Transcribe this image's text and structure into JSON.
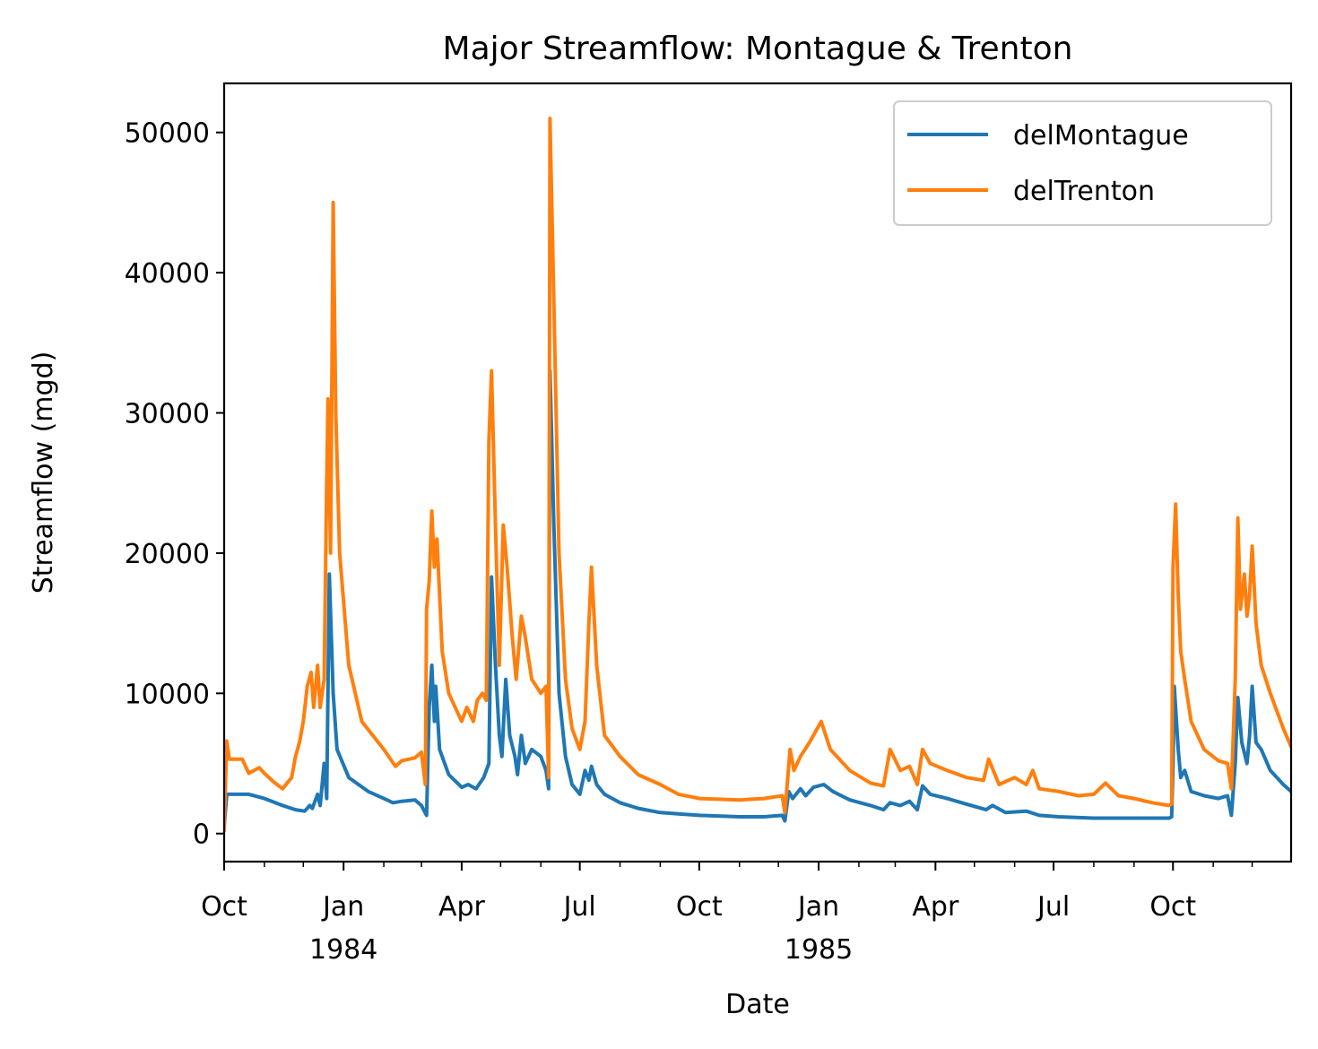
{
  "chart_data": {
    "type": "line",
    "title": "Major Streamflow: Montague & Trenton",
    "xlabel": "Date",
    "ylabel": "Streamflow (mgd)",
    "xlim": [
      "1983-10-01",
      "1985-12-31"
    ],
    "ylim": [
      -2000,
      53500
    ],
    "grid": false,
    "legend_position": "top-right",
    "y_ticks": [
      0,
      10000,
      20000,
      30000,
      40000,
      50000
    ],
    "y_tick_labels": [
      "0",
      "10000",
      "20000",
      "30000",
      "40000",
      "50000"
    ],
    "x_major_ticks": [
      {
        "date": "1983-10-01",
        "label": "Oct",
        "year": ""
      },
      {
        "date": "1984-01-01",
        "label": "Jan",
        "year": "1984"
      },
      {
        "date": "1984-04-01",
        "label": "Apr",
        "year": ""
      },
      {
        "date": "1984-07-01",
        "label": "Jul",
        "year": ""
      },
      {
        "date": "1984-10-01",
        "label": "Oct",
        "year": ""
      },
      {
        "date": "1985-01-01",
        "label": "Jan",
        "year": "1985"
      },
      {
        "date": "1985-04-01",
        "label": "Apr",
        "year": ""
      },
      {
        "date": "1985-07-01",
        "label": "Jul",
        "year": ""
      },
      {
        "date": "1985-10-01",
        "label": "Oct",
        "year": ""
      }
    ],
    "x_minor_ticks": [
      "1983-11-01",
      "1983-12-01",
      "1984-02-01",
      "1984-03-01",
      "1984-05-01",
      "1984-06-01",
      "1984-08-01",
      "1984-09-01",
      "1984-11-01",
      "1984-12-01",
      "1985-02-01",
      "1985-03-01",
      "1985-05-01",
      "1985-06-01",
      "1985-08-01",
      "1985-09-01",
      "1985-11-01",
      "1985-12-01"
    ],
    "series": [
      {
        "name": "delMontague",
        "color": "#1f77b4",
        "points": [
          [
            "1983-10-01",
            500
          ],
          [
            "1983-10-03",
            2800
          ],
          [
            "1983-10-20",
            2800
          ],
          [
            "1983-11-01",
            2500
          ],
          [
            "1983-11-15",
            2000
          ],
          [
            "1983-11-25",
            1700
          ],
          [
            "1983-12-02",
            1600
          ],
          [
            "1983-12-06",
            2000
          ],
          [
            "1983-12-08",
            1800
          ],
          [
            "1983-12-12",
            2800
          ],
          [
            "1983-12-14",
            2000
          ],
          [
            "1983-12-17",
            5000
          ],
          [
            "1983-12-19",
            2500
          ],
          [
            "1983-12-21",
            18500
          ],
          [
            "1983-12-24",
            10000
          ],
          [
            "1983-12-27",
            6000
          ],
          [
            "1984-01-05",
            4000
          ],
          [
            "1984-01-20",
            3000
          ],
          [
            "1984-02-01",
            2500
          ],
          [
            "1984-02-08",
            2200
          ],
          [
            "1984-02-15",
            2300
          ],
          [
            "1984-02-25",
            2400
          ],
          [
            "1984-03-01",
            2000
          ],
          [
            "1984-03-05",
            1300
          ],
          [
            "1984-03-07",
            9000
          ],
          [
            "1984-03-09",
            12000
          ],
          [
            "1984-03-11",
            8000
          ],
          [
            "1984-03-12",
            10500
          ],
          [
            "1984-03-15",
            6000
          ],
          [
            "1984-03-22",
            4200
          ],
          [
            "1984-04-01",
            3300
          ],
          [
            "1984-04-06",
            3500
          ],
          [
            "1984-04-12",
            3200
          ],
          [
            "1984-04-18",
            4000
          ],
          [
            "1984-04-22",
            5000
          ],
          [
            "1984-04-24",
            18300
          ],
          [
            "1984-04-27",
            12000
          ],
          [
            "1984-04-30",
            7000
          ],
          [
            "1984-05-02",
            5500
          ],
          [
            "1984-05-05",
            11000
          ],
          [
            "1984-05-08",
            7000
          ],
          [
            "1984-05-12",
            5500
          ],
          [
            "1984-05-14",
            4200
          ],
          [
            "1984-05-17",
            7000
          ],
          [
            "1984-05-20",
            5000
          ],
          [
            "1984-05-25",
            6000
          ],
          [
            "1984-06-01",
            5500
          ],
          [
            "1984-06-05",
            4500
          ],
          [
            "1984-06-07",
            3200
          ],
          [
            "1984-06-08",
            33000
          ],
          [
            "1984-06-11",
            22000
          ],
          [
            "1984-06-15",
            10000
          ],
          [
            "1984-06-20",
            5500
          ],
          [
            "1984-06-25",
            3500
          ],
          [
            "1984-07-01",
            2800
          ],
          [
            "1984-07-05",
            4500
          ],
          [
            "1984-07-08",
            3800
          ],
          [
            "1984-07-10",
            4800
          ],
          [
            "1984-07-14",
            3500
          ],
          [
            "1984-07-20",
            2800
          ],
          [
            "1984-08-01",
            2200
          ],
          [
            "1984-08-15",
            1800
          ],
          [
            "1984-09-01",
            1500
          ],
          [
            "1984-09-15",
            1400
          ],
          [
            "1984-10-01",
            1300
          ],
          [
            "1984-11-01",
            1200
          ],
          [
            "1984-11-20",
            1200
          ],
          [
            "1984-12-04",
            1300
          ],
          [
            "1984-12-06",
            900
          ],
          [
            "1984-12-09",
            3000
          ],
          [
            "1984-12-12",
            2500
          ],
          [
            "1984-12-18",
            3200
          ],
          [
            "1984-12-22",
            2700
          ],
          [
            "1984-12-28",
            3300
          ],
          [
            "1985-01-05",
            3500
          ],
          [
            "1985-01-12",
            3000
          ],
          [
            "1985-01-25",
            2400
          ],
          [
            "1985-02-10",
            2000
          ],
          [
            "1985-02-20",
            1700
          ],
          [
            "1985-02-25",
            2200
          ],
          [
            "1985-03-05",
            2000
          ],
          [
            "1985-03-12",
            2300
          ],
          [
            "1985-03-18",
            1700
          ],
          [
            "1985-03-22",
            3400
          ],
          [
            "1985-03-28",
            2800
          ],
          [
            "1985-04-10",
            2500
          ],
          [
            "1985-04-25",
            2100
          ],
          [
            "1985-05-10",
            1700
          ],
          [
            "1985-05-15",
            2000
          ],
          [
            "1985-05-25",
            1500
          ],
          [
            "1985-06-10",
            1600
          ],
          [
            "1985-06-20",
            1300
          ],
          [
            "1985-07-05",
            1200
          ],
          [
            "1985-08-01",
            1100
          ],
          [
            "1985-09-01",
            1100
          ],
          [
            "1985-09-28",
            1100
          ],
          [
            "1985-09-30",
            1200
          ],
          [
            "1985-10-01",
            5000
          ],
          [
            "1985-10-02",
            10500
          ],
          [
            "1985-10-05",
            6000
          ],
          [
            "1985-10-07",
            4000
          ],
          [
            "1985-10-10",
            4500
          ],
          [
            "1985-10-15",
            3000
          ],
          [
            "1985-10-25",
            2700
          ],
          [
            "1985-11-05",
            2500
          ],
          [
            "1985-11-12",
            2700
          ],
          [
            "1985-11-15",
            1300
          ],
          [
            "1985-11-18",
            5000
          ],
          [
            "1985-11-20",
            9700
          ],
          [
            "1985-11-23",
            6500
          ],
          [
            "1985-11-27",
            5000
          ],
          [
            "1985-11-29",
            7000
          ],
          [
            "1985-12-01",
            10500
          ],
          [
            "1985-12-04",
            6500
          ],
          [
            "1985-12-08",
            6000
          ],
          [
            "1985-12-15",
            4500
          ],
          [
            "1985-12-25",
            3500
          ],
          [
            "1985-12-31",
            3000
          ]
        ]
      },
      {
        "name": "delTrenton",
        "color": "#ff7f0e",
        "points": [
          [
            "1983-10-01",
            200
          ],
          [
            "1983-10-03",
            6600
          ],
          [
            "1983-10-05",
            5300
          ],
          [
            "1983-10-15",
            5300
          ],
          [
            "1983-10-20",
            4300
          ],
          [
            "1983-10-28",
            4700
          ],
          [
            "1983-11-01",
            4300
          ],
          [
            "1983-11-08",
            3700
          ],
          [
            "1983-11-15",
            3200
          ],
          [
            "1983-11-22",
            4000
          ],
          [
            "1983-11-25",
            5500
          ],
          [
            "1983-11-28",
            6500
          ],
          [
            "1983-12-01",
            8000
          ],
          [
            "1983-12-04",
            10500
          ],
          [
            "1983-12-07",
            11500
          ],
          [
            "1983-12-09",
            9000
          ],
          [
            "1983-12-12",
            12000
          ],
          [
            "1983-12-14",
            9000
          ],
          [
            "1983-12-17",
            11000
          ],
          [
            "1983-12-19",
            25000
          ],
          [
            "1983-12-20",
            31000
          ],
          [
            "1983-12-22",
            20000
          ],
          [
            "1983-12-24",
            45000
          ],
          [
            "1983-12-26",
            30000
          ],
          [
            "1983-12-29",
            20000
          ],
          [
            "1984-01-05",
            12000
          ],
          [
            "1984-01-15",
            8000
          ],
          [
            "1984-02-01",
            6000
          ],
          [
            "1984-02-10",
            4800
          ],
          [
            "1984-02-15",
            5200
          ],
          [
            "1984-02-25",
            5400
          ],
          [
            "1984-03-01",
            5800
          ],
          [
            "1984-03-04",
            3500
          ],
          [
            "1984-03-05",
            16000
          ],
          [
            "1984-03-07",
            18000
          ],
          [
            "1984-03-09",
            23000
          ],
          [
            "1984-03-11",
            19000
          ],
          [
            "1984-03-13",
            21000
          ],
          [
            "1984-03-15",
            17000
          ],
          [
            "1984-03-17",
            13000
          ],
          [
            "1984-03-22",
            10000
          ],
          [
            "1984-04-01",
            8000
          ],
          [
            "1984-04-05",
            9000
          ],
          [
            "1984-04-10",
            8000
          ],
          [
            "1984-04-13",
            9500
          ],
          [
            "1984-04-17",
            10000
          ],
          [
            "1984-04-20",
            9500
          ],
          [
            "1984-04-22",
            28000
          ],
          [
            "1984-04-24",
            33000
          ],
          [
            "1984-04-27",
            22000
          ],
          [
            "1984-04-30",
            12000
          ],
          [
            "1984-05-03",
            22000
          ],
          [
            "1984-05-06",
            19000
          ],
          [
            "1984-05-10",
            14000
          ],
          [
            "1984-05-13",
            11000
          ],
          [
            "1984-05-17",
            15500
          ],
          [
            "1984-05-20",
            14000
          ],
          [
            "1984-05-25",
            11000
          ],
          [
            "1984-06-01",
            10000
          ],
          [
            "1984-06-05",
            10500
          ],
          [
            "1984-06-07",
            4000
          ],
          [
            "1984-06-08",
            51000
          ],
          [
            "1984-06-11",
            38000
          ],
          [
            "1984-06-15",
            20000
          ],
          [
            "1984-06-20",
            11000
          ],
          [
            "1984-06-25",
            7500
          ],
          [
            "1984-07-01",
            6000
          ],
          [
            "1984-07-05",
            8000
          ],
          [
            "1984-07-08",
            15000
          ],
          [
            "1984-07-10",
            19000
          ],
          [
            "1984-07-14",
            12000
          ],
          [
            "1984-07-20",
            7000
          ],
          [
            "1984-08-01",
            5500
          ],
          [
            "1984-08-15",
            4200
          ],
          [
            "1984-09-01",
            3500
          ],
          [
            "1984-09-15",
            2800
          ],
          [
            "1984-10-01",
            2500
          ],
          [
            "1984-11-01",
            2400
          ],
          [
            "1984-11-20",
            2500
          ],
          [
            "1984-12-04",
            2700
          ],
          [
            "1984-12-06",
            1500
          ],
          [
            "1984-12-10",
            6000
          ],
          [
            "1984-12-13",
            4500
          ],
          [
            "1984-12-18",
            5500
          ],
          [
            "1984-12-25",
            6500
          ],
          [
            "1985-01-03",
            8000
          ],
          [
            "1985-01-10",
            6000
          ],
          [
            "1985-01-25",
            4500
          ],
          [
            "1985-02-10",
            3600
          ],
          [
            "1985-02-20",
            3400
          ],
          [
            "1985-02-25",
            6000
          ],
          [
            "1985-03-05",
            4500
          ],
          [
            "1985-03-12",
            4800
          ],
          [
            "1985-03-18",
            3500
          ],
          [
            "1985-03-22",
            6000
          ],
          [
            "1985-03-28",
            5000
          ],
          [
            "1985-04-10",
            4500
          ],
          [
            "1985-04-25",
            4000
          ],
          [
            "1985-05-08",
            3800
          ],
          [
            "1985-05-12",
            5300
          ],
          [
            "1985-05-20",
            3500
          ],
          [
            "1985-06-01",
            4000
          ],
          [
            "1985-06-10",
            3500
          ],
          [
            "1985-06-15",
            4500
          ],
          [
            "1985-06-20",
            3200
          ],
          [
            "1985-07-05",
            3000
          ],
          [
            "1985-07-20",
            2700
          ],
          [
            "1985-08-01",
            2800
          ],
          [
            "1985-08-10",
            3600
          ],
          [
            "1985-08-20",
            2700
          ],
          [
            "1985-09-01",
            2500
          ],
          [
            "1985-09-15",
            2200
          ],
          [
            "1985-09-28",
            2000
          ],
          [
            "1985-09-30",
            2100
          ],
          [
            "1985-10-01",
            19000
          ],
          [
            "1985-10-03",
            23500
          ],
          [
            "1985-10-05",
            17000
          ],
          [
            "1985-10-07",
            13000
          ],
          [
            "1985-10-10",
            11000
          ],
          [
            "1985-10-15",
            8000
          ],
          [
            "1985-10-25",
            6000
          ],
          [
            "1985-11-05",
            5200
          ],
          [
            "1985-11-12",
            5000
          ],
          [
            "1985-11-15",
            3200
          ],
          [
            "1985-11-18",
            11000
          ],
          [
            "1985-11-20",
            22500
          ],
          [
            "1985-11-22",
            16000
          ],
          [
            "1985-11-25",
            18500
          ],
          [
            "1985-11-27",
            15500
          ],
          [
            "1985-11-29",
            17000
          ],
          [
            "1985-12-01",
            20500
          ],
          [
            "1985-12-04",
            15000
          ],
          [
            "1985-12-08",
            12000
          ],
          [
            "1985-12-15",
            10000
          ],
          [
            "1985-12-25",
            7500
          ],
          [
            "1985-12-31",
            6200
          ]
        ]
      }
    ]
  }
}
